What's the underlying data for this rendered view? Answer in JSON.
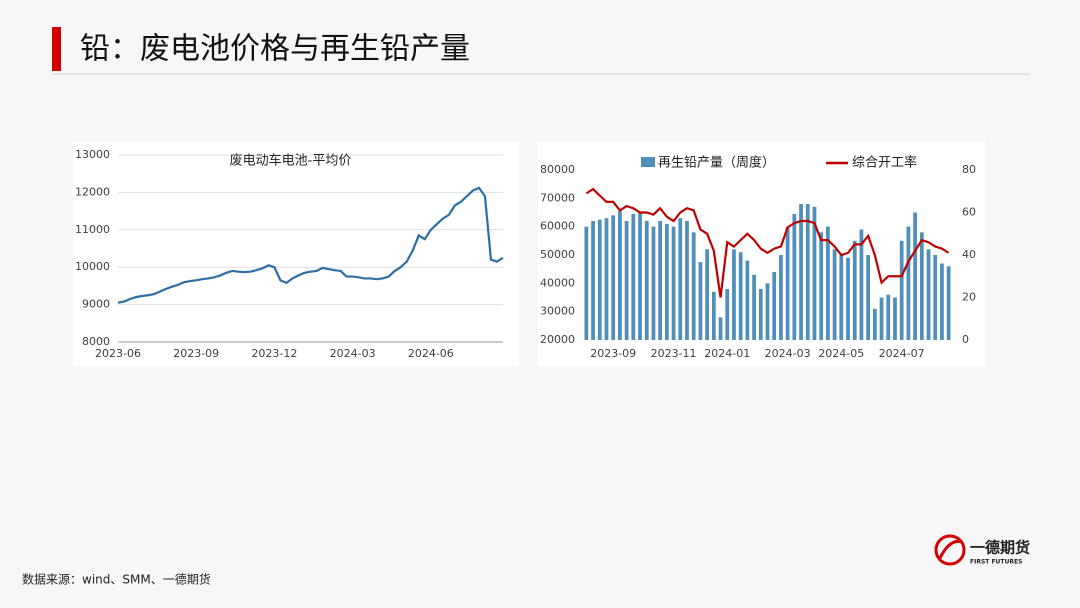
{
  "header": {
    "title": "铅：废电池价格与再生铅产量"
  },
  "chart_data": [
    {
      "type": "line",
      "title": "废电动车电池-平均价",
      "color": "#2e6da4",
      "categories": [
        "2023-06",
        null,
        null,
        null,
        null,
        null,
        null,
        null,
        null,
        null,
        null,
        null,
        null,
        "2023-09",
        null,
        null,
        null,
        null,
        null,
        null,
        null,
        null,
        null,
        null,
        null,
        null,
        "2023-12",
        null,
        null,
        null,
        null,
        null,
        null,
        null,
        null,
        null,
        null,
        null,
        null,
        "2024-03",
        null,
        null,
        null,
        null,
        null,
        null,
        null,
        null,
        null,
        null,
        null,
        null,
        "2024-06",
        null,
        null,
        null,
        null,
        null,
        null,
        null,
        null,
        null,
        null,
        null,
        null
      ],
      "values": [
        9050,
        9080,
        9150,
        9200,
        9230,
        9250,
        9280,
        9350,
        9420,
        9480,
        9530,
        9600,
        9630,
        9650,
        9680,
        9700,
        9730,
        9780,
        9850,
        9900,
        9880,
        9870,
        9880,
        9920,
        9970,
        10050,
        10000,
        9650,
        9580,
        9700,
        9780,
        9850,
        9880,
        9900,
        9980,
        9950,
        9920,
        9900,
        9750,
        9750,
        9730,
        9700,
        9700,
        9680,
        9700,
        9750,
        9900,
        10000,
        10150,
        10450,
        10850,
        10750,
        11000,
        11150,
        11300,
        11400,
        11650,
        11750,
        11900,
        12050,
        12120,
        11900,
        10200,
        10150,
        10250
      ],
      "ylim": [
        8000,
        13000
      ],
      "yticks": [
        8000,
        9000,
        10000,
        11000,
        12000,
        13000
      ],
      "grid": true
    },
    {
      "type": "combo",
      "categories": [
        null,
        null,
        null,
        null,
        "2023-09",
        null,
        null,
        null,
        null,
        null,
        null,
        null,
        null,
        "2023-11",
        null,
        null,
        null,
        null,
        null,
        null,
        null,
        "2024-01",
        null,
        null,
        null,
        null,
        null,
        null,
        null,
        null,
        "2024-03",
        null,
        null,
        null,
        null,
        null,
        null,
        null,
        "2024-05",
        null,
        null,
        null,
        null,
        null,
        null,
        null,
        null,
        "2024-07",
        null,
        null,
        null,
        null,
        null,
        null,
        null
      ],
      "series": [
        {
          "name": "再生铅产量（周度）",
          "type": "bar",
          "color": "#4f8fba",
          "values": [
            60000,
            62000,
            62500,
            63000,
            64000,
            65500,
            62000,
            64500,
            65000,
            62000,
            60000,
            62000,
            61000,
            60000,
            63000,
            62000,
            58000,
            47500,
            52000,
            37000,
            28000,
            38000,
            52000,
            51000,
            48000,
            43000,
            38000,
            40000,
            44000,
            50000,
            60000,
            64500,
            68000,
            68000,
            67000,
            58000,
            60000,
            52000,
            50000,
            49000,
            55000,
            59000,
            50000,
            31000,
            35000,
            36000,
            35000,
            55000,
            60000,
            65000,
            58000,
            52000,
            50000,
            47000,
            46000
          ]
        },
        {
          "name": "综合开工率",
          "type": "line",
          "axis": "y2",
          "color": "#c00000",
          "values": [
            69,
            71,
            68,
            65,
            65,
            61,
            63,
            62,
            60,
            60,
            59,
            62,
            58,
            56,
            60,
            62,
            61,
            52,
            50,
            42,
            20,
            46,
            44,
            47,
            50,
            47,
            43,
            41,
            43,
            44,
            53,
            55,
            56,
            56,
            55,
            47,
            47,
            44,
            40,
            41,
            45,
            45,
            49,
            40,
            27,
            30,
            30,
            30,
            37,
            42,
            47,
            46,
            44,
            43,
            41
          ]
        }
      ],
      "ylim": [
        20000,
        80000
      ],
      "yticks": [
        20000,
        30000,
        40000,
        50000,
        60000,
        70000,
        80000
      ],
      "y2lim": [
        0,
        80
      ],
      "y2ticks": [
        0,
        20,
        40,
        60,
        80
      ],
      "grid": false
    }
  ],
  "footer": {
    "source": "数据来源：wind、SMM、一德期货"
  },
  "logo": {
    "name": "一德期货",
    "subtitle": "FIRST FUTURES"
  }
}
